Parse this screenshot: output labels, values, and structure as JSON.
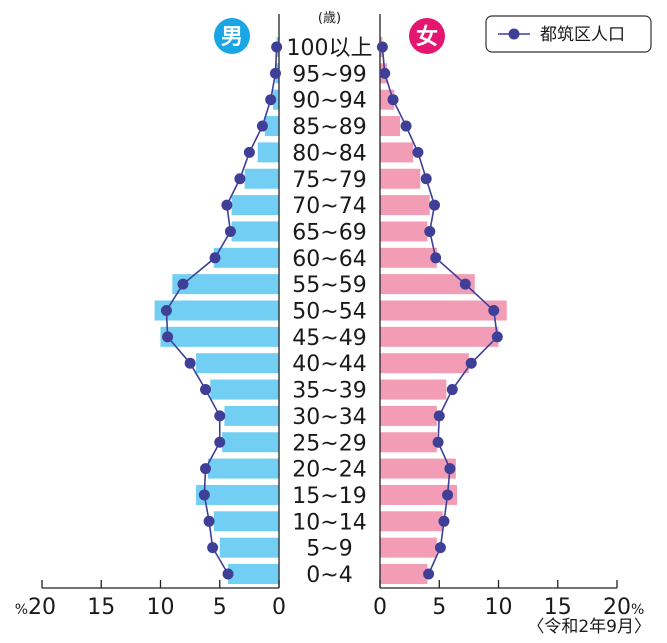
{
  "chart_data": {
    "type": "bar",
    "subtype": "population-pyramid",
    "age_unit": "(歳)",
    "left_sex": "男",
    "right_sex": "女",
    "categories": [
      "0~4",
      "5~9",
      "10~14",
      "15~19",
      "20~24",
      "25~29",
      "30~34",
      "35~39",
      "40~44",
      "45~49",
      "50~54",
      "55~59",
      "60~64",
      "65~69",
      "70~74",
      "75~79",
      "80~84",
      "85~89",
      "90~94",
      "95~99",
      "100以上"
    ],
    "series": [
      {
        "name": "男",
        "values": [
          4.3,
          5.0,
          5.5,
          7.0,
          6.0,
          4.8,
          4.6,
          5.8,
          7.0,
          10.0,
          10.5,
          9.0,
          5.5,
          4.0,
          4.0,
          2.9,
          1.8,
          1.2,
          0.5,
          0.3,
          0.2
        ]
      },
      {
        "name": "女",
        "values": [
          4.0,
          4.8,
          5.3,
          6.5,
          6.4,
          4.8,
          4.8,
          5.6,
          7.5,
          10.0,
          10.7,
          8.0,
          4.8,
          4.0,
          4.2,
          3.4,
          2.8,
          1.7,
          1.2,
          0.6,
          0.2
        ]
      }
    ],
    "line_series": {
      "name": "都筑区人口",
      "male": [
        4.3,
        5.6,
        5.9,
        6.3,
        6.2,
        5.0,
        5.0,
        6.2,
        7.5,
        9.4,
        9.5,
        8.1,
        5.4,
        4.1,
        4.4,
        3.3,
        2.5,
        1.4,
        0.7,
        0.3,
        0.2
      ],
      "female": [
        4.1,
        5.1,
        5.4,
        5.7,
        5.9,
        4.9,
        5.0,
        6.1,
        7.7,
        9.9,
        9.6,
        7.2,
        4.7,
        4.2,
        4.6,
        3.9,
        3.2,
        2.2,
        1.1,
        0.4,
        0.2
      ]
    },
    "x_ticks": [
      "20",
      "15",
      "10",
      "5",
      "0"
    ],
    "x_unit": "%",
    "xlim": [
      0,
      20
    ],
    "date_label": "〈令和2年9月〉",
    "colors": {
      "male_bar": "#72cff3",
      "female_bar": "#f29db5",
      "line": "#3f3f98",
      "male_badge": "#1aa6e4",
      "female_badge": "#e4166f"
    }
  }
}
